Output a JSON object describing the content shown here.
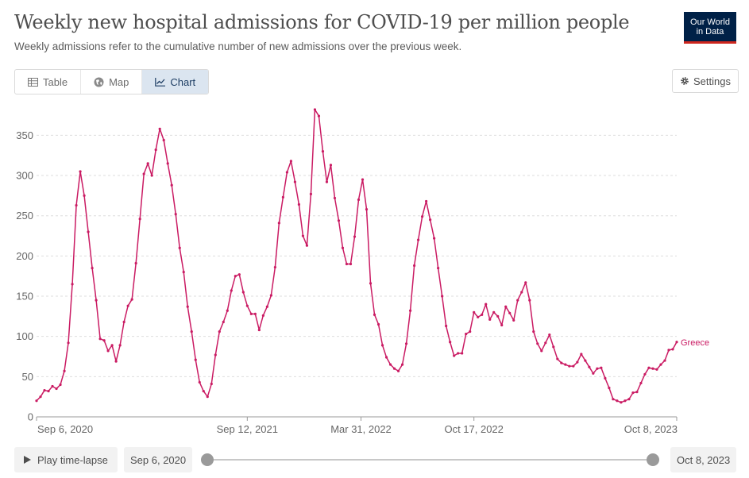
{
  "header": {
    "title": "Weekly new hospital admissions for COVID-19 per million people",
    "subtitle": "Weekly admissions refer to the cumulative number of new admissions over the previous week.",
    "logo_line1": "Our World",
    "logo_line2": "in Data"
  },
  "tabs": [
    {
      "label": "Table",
      "icon": "table-icon"
    },
    {
      "label": "Map",
      "icon": "globe-icon"
    },
    {
      "label": "Chart",
      "icon": "line-chart-icon",
      "active": true
    }
  ],
  "settings_label": "Settings",
  "colors": {
    "series": "#ca1b63",
    "grid": "#dddddd",
    "axis": "#666666"
  },
  "chart_data": {
    "type": "line",
    "title": "",
    "xlabel": "",
    "ylabel": "",
    "ylim": [
      0,
      380
    ],
    "yticks": [
      0,
      50,
      100,
      150,
      200,
      250,
      300,
      350
    ],
    "grid": "horizontal dashed",
    "x_start": "2020-09-06",
    "x_end": "2023-10-08",
    "xticks": [
      {
        "label": "Sep 6, 2020",
        "week": 0
      },
      {
        "label": "Sep 12, 2021",
        "week": 53
      },
      {
        "label": "Mar 31, 2022",
        "week": 81.6
      },
      {
        "label": "Oct 17, 2022",
        "week": 110
      },
      {
        "label": "Oct 8, 2023",
        "week": 161
      }
    ],
    "series": [
      {
        "name": "Greece",
        "label_position": "end of line",
        "values": [
          20,
          25,
          33,
          32,
          38,
          35,
          40,
          57,
          92,
          165,
          263,
          305,
          275,
          230,
          185,
          145,
          97,
          95,
          82,
          89,
          69,
          89,
          118,
          138,
          146,
          191,
          246,
          302,
          315,
          300,
          332,
          358,
          344,
          315,
          288,
          252,
          210,
          180,
          137,
          106,
          71,
          43,
          32,
          25,
          41,
          77,
          106,
          118,
          132,
          157,
          175,
          177,
          155,
          138,
          128,
          128,
          108,
          126,
          137,
          151,
          186,
          241,
          273,
          304,
          318,
          292,
          264,
          225,
          213,
          277,
          382,
          374,
          330,
          292,
          313,
          272,
          244,
          210,
          190,
          190,
          224,
          270,
          295,
          258,
          166,
          127,
          115,
          89,
          74,
          65,
          60,
          57,
          65,
          91,
          132,
          188,
          220,
          249,
          268,
          245,
          222,
          185,
          150,
          113,
          93,
          76,
          79,
          79,
          103,
          106,
          130,
          124,
          127,
          140,
          121,
          130,
          125,
          114,
          137,
          129,
          120,
          145,
          155,
          167,
          145,
          106,
          91,
          82,
          92,
          102,
          87,
          72,
          67,
          65,
          63,
          63,
          68,
          78,
          70,
          62,
          54,
          60,
          61,
          48,
          36,
          22,
          20,
          18,
          20,
          22,
          30,
          31,
          42,
          53,
          61,
          60,
          59,
          65,
          70,
          83,
          84,
          93
        ]
      }
    ]
  },
  "footer": {
    "play_label": "Play time-lapse",
    "start_date": "Sep 6, 2020",
    "end_date": "Oct 8, 2023"
  }
}
